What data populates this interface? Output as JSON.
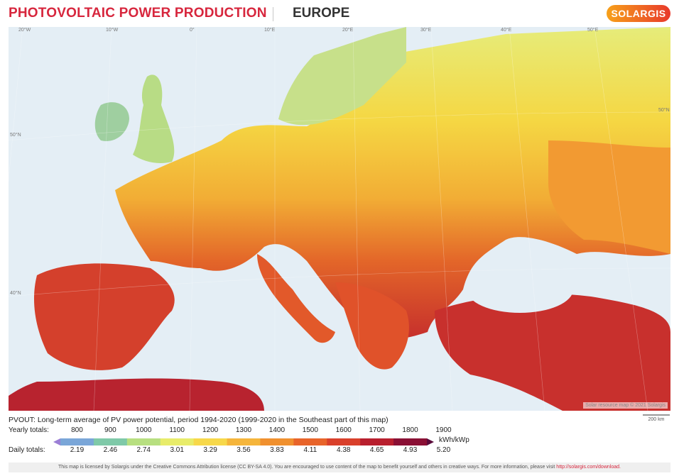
{
  "header": {
    "title": "PHOTOVOLTAIC POWER PRODUCTION",
    "region": "EUROPE",
    "logo_text": "SOLARGIS",
    "brand_color": "#d7263d"
  },
  "map": {
    "graticule_top": [
      "20°W",
      "10°W",
      "0°",
      "10°E",
      "20°E",
      "30°E",
      "40°E",
      "50°E"
    ],
    "graticule_left": [
      "50°N",
      "40°N"
    ],
    "graticule_right": [
      "50°N"
    ],
    "credit": "Solar resource map © 2021 Solargis",
    "scale_label": "200 km"
  },
  "legend": {
    "caption": "PVOUT: Long-term average of PV power potential, period 1994-2020 (1999-2020 in the Southeast part of this map)",
    "yearly_label": "Yearly totals:",
    "daily_label": "Daily totals:",
    "yearly_values": [
      "800",
      "900",
      "1000",
      "1100",
      "1200",
      "1300",
      "1400",
      "1500",
      "1600",
      "1700",
      "1800",
      "1900"
    ],
    "daily_values": [
      "2.19",
      "2.46",
      "2.74",
      "3.01",
      "3.29",
      "3.56",
      "3.83",
      "4.11",
      "4.38",
      "4.65",
      "4.93",
      "5.20"
    ],
    "unit": "kWh/kWp",
    "colors": [
      "#9b7fd6",
      "#7aa6d8",
      "#7fc9a8",
      "#b7df80",
      "#e8ec6a",
      "#f7d84a",
      "#f5b53b",
      "#f0902e",
      "#e8642a",
      "#d9402b",
      "#b81f2e",
      "#8a1035",
      "#5a0a3a"
    ]
  },
  "footer": {
    "license_text": "This map is licensed by Solargis under the Creative Commons Attribution license (CC BY-SA 4.0). You are encouraged to use content of the map to benefit yourself and others in creative ways. For more information, please visit",
    "license_link": "http://solargis.com/download."
  }
}
